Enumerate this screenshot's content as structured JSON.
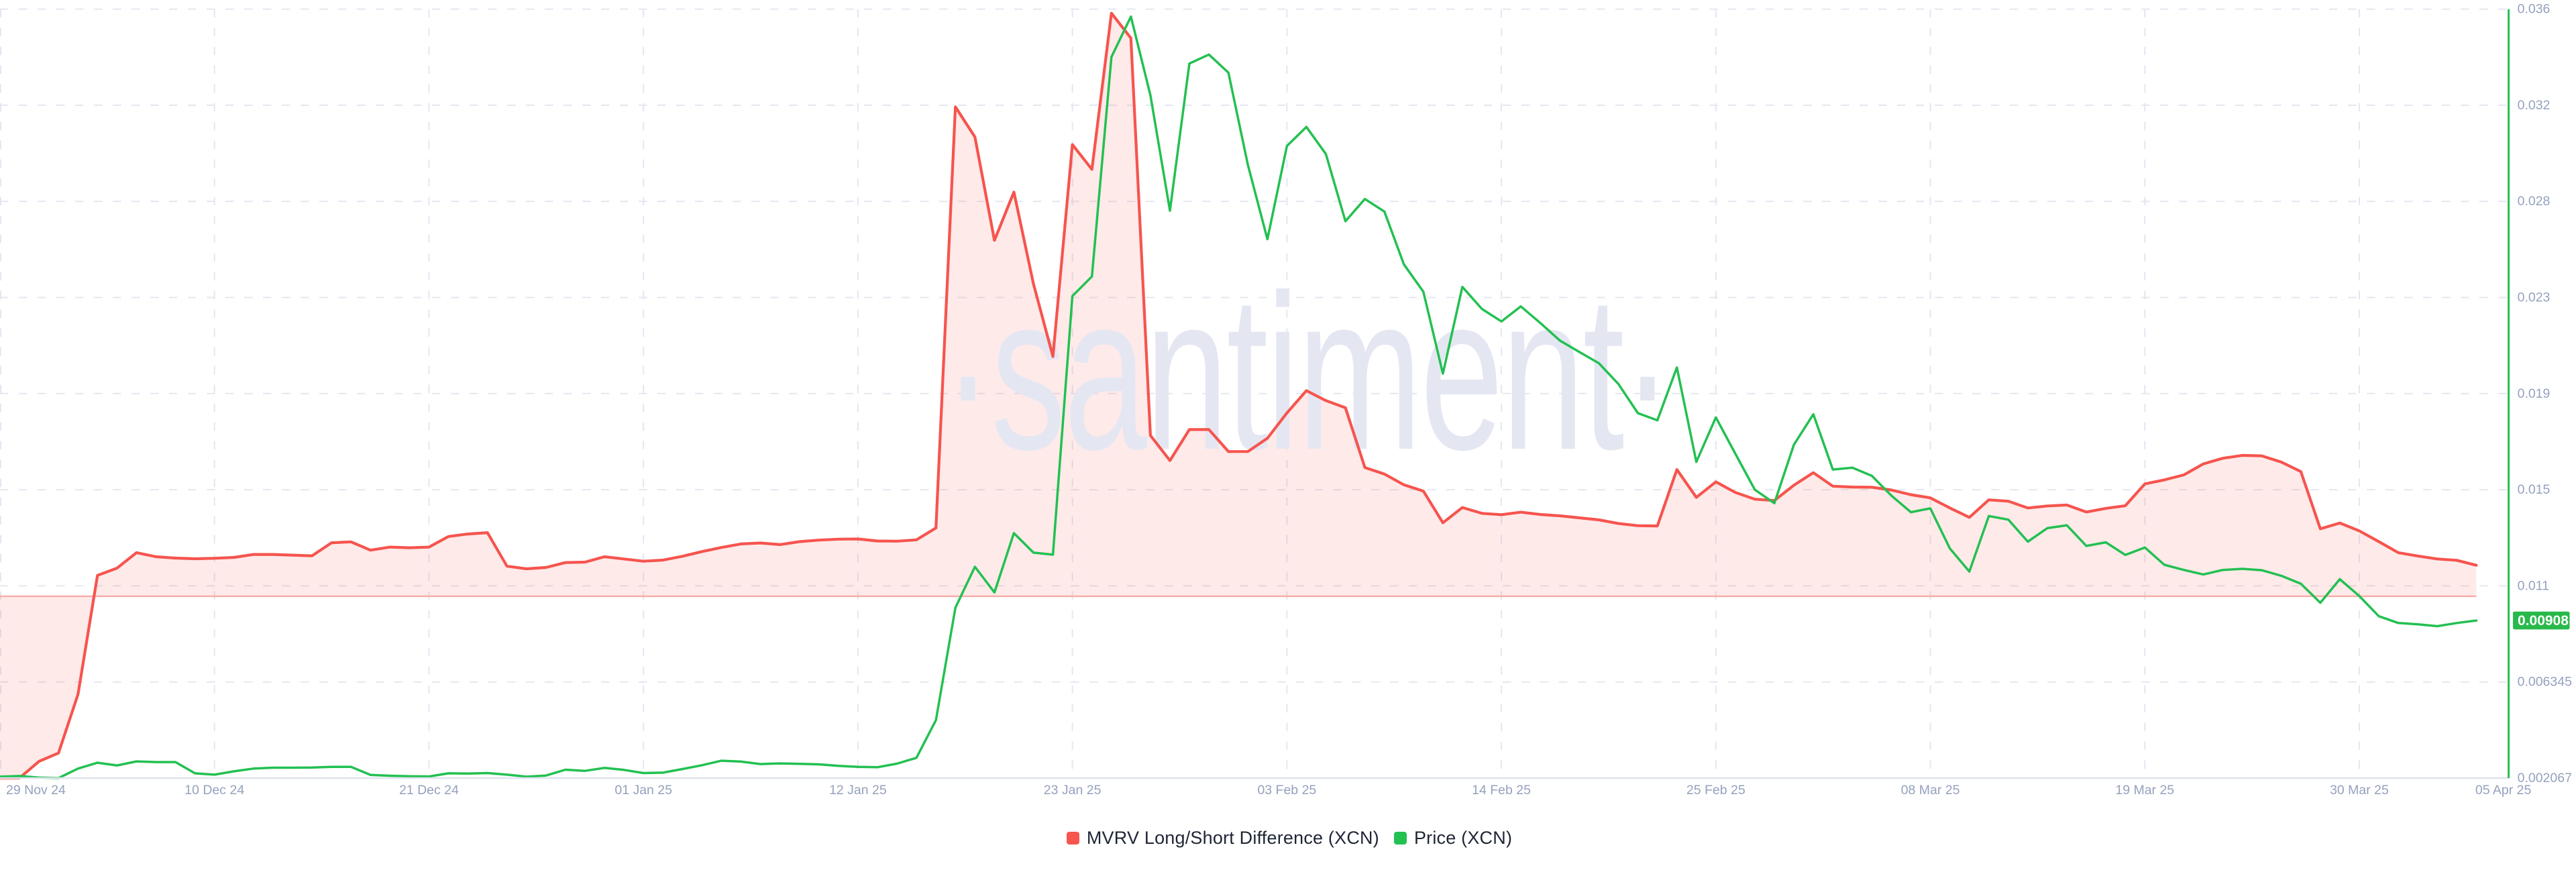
{
  "watermark": {
    "text": "·santiment·",
    "color": "#e4e7f2"
  },
  "chart_data": {
    "type": "line",
    "description": "Santiment chart of MVRV Long/Short Difference (XCN) as a red area series (hidden left axis) and Price (XCN) as a green line on the right price axis. Daily data from 29 Nov 2024 to 05 Apr 2025.",
    "dates": [
      "2024-11-29",
      "2024-11-30",
      "2024-12-01",
      "2024-12-02",
      "2024-12-03",
      "2024-12-04",
      "2024-12-05",
      "2024-12-06",
      "2024-12-07",
      "2024-12-08",
      "2024-12-09",
      "2024-12-10",
      "2024-12-11",
      "2024-12-12",
      "2024-12-13",
      "2024-12-14",
      "2024-12-15",
      "2024-12-16",
      "2024-12-17",
      "2024-12-18",
      "2024-12-19",
      "2024-12-20",
      "2024-12-21",
      "2024-12-22",
      "2024-12-23",
      "2024-12-24",
      "2024-12-25",
      "2024-12-26",
      "2024-12-27",
      "2024-12-28",
      "2024-12-29",
      "2024-12-30",
      "2024-12-31",
      "2025-01-01",
      "2025-01-02",
      "2025-01-03",
      "2025-01-04",
      "2025-01-05",
      "2025-01-06",
      "2025-01-07",
      "2025-01-08",
      "2025-01-09",
      "2025-01-10",
      "2025-01-11",
      "2025-01-12",
      "2025-01-13",
      "2025-01-14",
      "2025-01-15",
      "2025-01-16",
      "2025-01-17",
      "2025-01-18",
      "2025-01-19",
      "2025-01-20",
      "2025-01-21",
      "2025-01-22",
      "2025-01-23",
      "2025-01-24",
      "2025-01-25",
      "2025-01-26",
      "2025-01-27",
      "2025-01-28",
      "2025-01-29",
      "2025-01-30",
      "2025-01-31",
      "2025-02-01",
      "2025-02-02",
      "2025-02-03",
      "2025-02-04",
      "2025-02-05",
      "2025-02-06",
      "2025-02-07",
      "2025-02-08",
      "2025-02-09",
      "2025-02-10",
      "2025-02-11",
      "2025-02-12",
      "2025-02-13",
      "2025-02-14",
      "2025-02-15",
      "2025-02-16",
      "2025-02-17",
      "2025-02-18",
      "2025-02-19",
      "2025-02-20",
      "2025-02-21",
      "2025-02-22",
      "2025-02-23",
      "2025-02-24",
      "2025-02-25",
      "2025-02-26",
      "2025-02-27",
      "2025-02-28",
      "2025-03-01",
      "2025-03-02",
      "2025-03-03",
      "2025-03-04",
      "2025-03-05",
      "2025-03-06",
      "2025-03-07",
      "2025-03-08",
      "2025-03-09",
      "2025-03-10",
      "2025-03-11",
      "2025-03-12",
      "2025-03-13",
      "2025-03-14",
      "2025-03-15",
      "2025-03-16",
      "2025-03-17",
      "2025-03-18",
      "2025-03-19",
      "2025-03-20",
      "2025-03-21",
      "2025-03-22",
      "2025-03-23",
      "2025-03-24",
      "2025-03-25",
      "2025-03-26",
      "2025-03-27",
      "2025-03-28",
      "2025-03-29",
      "2025-03-30",
      "2025-03-31",
      "2025-04-01",
      "2025-04-02",
      "2025-04-03",
      "2025-04-04",
      "2025-04-05"
    ],
    "series": [
      {
        "name": "MVRV Long/Short Difference (XCN)",
        "style": "area",
        "color": "#f6544e",
        "fill_opacity": 0.12,
        "axis": "hidden (no visible scale for this metric; values below are the equivalent readings on the visible right price axis)",
        "zero_baseline_on_price_axis": 0.010158,
        "values_price_axis_equivalent": [
          0.00207,
          0.00207,
          0.00281,
          0.00318,
          0.0058,
          0.01109,
          0.01141,
          0.0121,
          0.01192,
          0.01186,
          0.01183,
          0.01185,
          0.01189,
          0.01202,
          0.01202,
          0.01199,
          0.01196,
          0.01254,
          0.01258,
          0.01221,
          0.01235,
          0.01232,
          0.01235,
          0.01282,
          0.01293,
          0.01299,
          0.0115,
          0.01138,
          0.01144,
          0.01166,
          0.01168,
          0.01192,
          0.01182,
          0.01172,
          0.01177,
          0.01194,
          0.01215,
          0.01233,
          0.01249,
          0.01253,
          0.01246,
          0.01259,
          0.01266,
          0.0127,
          0.01271,
          0.01262,
          0.01261,
          0.01267,
          0.0132,
          0.03194,
          0.0306,
          0.026,
          0.02815,
          0.02407,
          0.02083,
          0.03026,
          0.02916,
          0.03611,
          0.035,
          0.01732,
          0.0162,
          0.01758,
          0.01758,
          0.0166,
          0.0166,
          0.01719,
          0.01832,
          0.01931,
          0.01887,
          0.01855,
          0.01589,
          0.0156,
          0.01512,
          0.01484,
          0.01343,
          0.01411,
          0.01385,
          0.01379,
          0.0139,
          0.0138,
          0.01374,
          0.01365,
          0.01356,
          0.0134,
          0.0133,
          0.01329,
          0.0158,
          0.01456,
          0.01525,
          0.01478,
          0.01448,
          0.01442,
          0.0151,
          0.01566,
          0.01506,
          0.01502,
          0.01501,
          0.01489,
          0.01468,
          0.01454,
          0.01409,
          0.01367,
          0.01445,
          0.01439,
          0.01409,
          0.01418,
          0.01422,
          0.01391,
          0.01407,
          0.01419,
          0.01516,
          0.01534,
          0.01556,
          0.01605,
          0.0163,
          0.01643,
          0.01641,
          0.01613,
          0.01571,
          0.01316,
          0.01342,
          0.01307,
          0.01259,
          0.0121,
          0.01195,
          0.01182,
          0.01176,
          0.01154
        ]
      },
      {
        "name": "Price (XCN)",
        "style": "line",
        "color": "#23c052",
        "axis": "right",
        "values": [
          0.00213,
          0.00216,
          0.00209,
          0.002067,
          0.00249,
          0.00275,
          0.00263,
          0.00281,
          0.00278,
          0.00278,
          0.00228,
          0.00222,
          0.00237,
          0.00249,
          0.00253,
          0.00253,
          0.00254,
          0.00257,
          0.00257,
          0.00221,
          0.00217,
          0.00215,
          0.00214,
          0.00228,
          0.00227,
          0.00229,
          0.00222,
          0.00213,
          0.00218,
          0.00244,
          0.00239,
          0.00252,
          0.00243,
          0.00229,
          0.00231,
          0.00247,
          0.00264,
          0.00284,
          0.0028,
          0.00269,
          0.00272,
          0.0027,
          0.00268,
          0.00261,
          0.00257,
          0.00255,
          0.00271,
          0.00297,
          0.00465,
          0.00965,
          0.01147,
          0.01033,
          0.01297,
          0.0121,
          0.01201,
          0.02352,
          0.02439,
          0.03416,
          0.03596,
          0.03246,
          0.02732,
          0.03387,
          0.03427,
          0.03346,
          0.02936,
          0.02605,
          0.0302,
          0.03105,
          0.02984,
          0.02685,
          0.02784,
          0.02728,
          0.02493,
          0.02371,
          0.02007,
          0.02393,
          0.02295,
          0.02239,
          0.02306,
          0.02232,
          0.02154,
          0.02103,
          0.02053,
          0.01961,
          0.01831,
          0.01799,
          0.02034,
          0.01614,
          0.01812,
          0.0165,
          0.0149,
          0.0143,
          0.0169,
          0.01826,
          0.0158,
          0.01588,
          0.01552,
          0.01464,
          0.0139,
          0.01407,
          0.01229,
          0.01126,
          0.01373,
          0.01357,
          0.01259,
          0.01319,
          0.01332,
          0.0124,
          0.01256,
          0.012,
          0.01233,
          0.01156,
          0.01133,
          0.01113,
          0.01133,
          0.01138,
          0.01132,
          0.01107,
          0.01072,
          0.00987,
          0.01092,
          0.01017,
          0.00927,
          0.00897,
          0.00891,
          0.00883,
          0.00897,
          0.00908
        ]
      }
    ],
    "y_axis": {
      "side": "right",
      "tick_labels_top_to_bottom": [
        "0.036",
        "0.032",
        "0.028",
        "0.023",
        "0.019",
        "0.015",
        "0.011",
        "0.006345",
        "0.002067"
      ],
      "tick_values_top_to_bottom": [
        0.036291,
        0.032013,
        0.027735,
        0.023457,
        0.019179,
        0.014901,
        0.010623,
        0.006345,
        0.002067
      ],
      "min": 0.002067,
      "max": 0.036291,
      "axis_line_color": "#23c052",
      "label_color": "#95a1bd"
    },
    "x_axis": {
      "tick_labels": [
        "29 Nov 24",
        "10 Dec 24",
        "21 Dec 24",
        "01 Jan 25",
        "12 Jan 25",
        "23 Jan 25",
        "03 Feb 25",
        "14 Feb 25",
        "25 Feb 25",
        "08 Mar 25",
        "19 Mar 25",
        "30 Mar 25",
        "05 Apr 25"
      ],
      "tick_day_indices": [
        0,
        11,
        22,
        33,
        44,
        55,
        66,
        77,
        88,
        99,
        110,
        121,
        127
      ],
      "label_color": "#95a1bd"
    },
    "grid": {
      "style": "dashed",
      "color": "#e4e7f1",
      "baseline_color": "#e0e4ef"
    },
    "zero_line_color": "#fbaba6",
    "last_value_badge": {
      "text": "0.00908",
      "background": "#28b94b",
      "text_color": "#ffffff"
    },
    "legend_position": "bottom-center"
  },
  "legend": {
    "items": [
      {
        "label": "MVRV Long/Short Difference (XCN)",
        "color": "#f6544e"
      },
      {
        "label": "Price (XCN)",
        "color": "#23c052"
      }
    ]
  }
}
